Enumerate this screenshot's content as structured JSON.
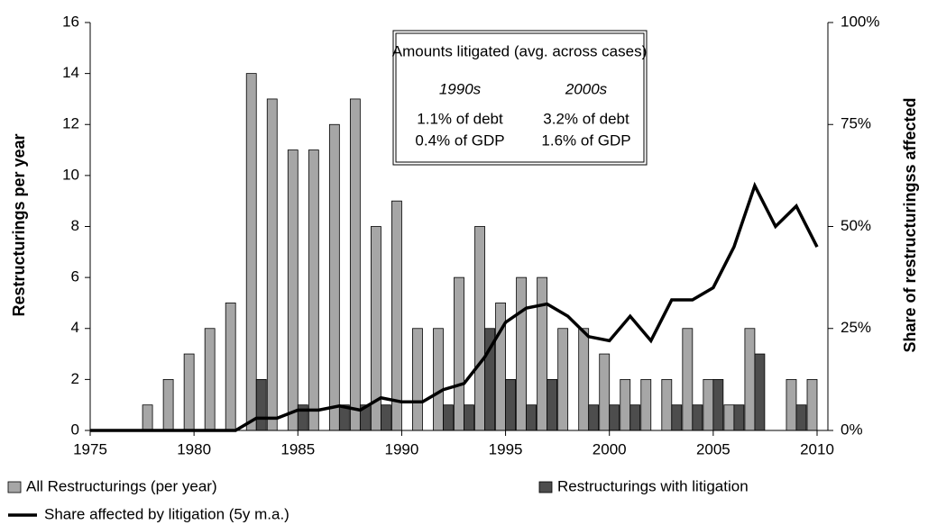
{
  "chart_data": {
    "type": "bar",
    "ylabel": "Restructurings per year",
    "y2label": "Share of restructuringss affected",
    "x": [
      1975,
      1976,
      1977,
      1978,
      1979,
      1980,
      1981,
      1982,
      1983,
      1984,
      1985,
      1986,
      1987,
      1988,
      1989,
      1990,
      1991,
      1992,
      1993,
      1994,
      1995,
      1996,
      1997,
      1998,
      1999,
      2000,
      2001,
      2002,
      2003,
      2004,
      2005,
      2006,
      2007,
      2008,
      2009,
      2010
    ],
    "xlim": [
      1975,
      2010
    ],
    "xticks": [
      1975,
      1980,
      1985,
      1990,
      1995,
      2000,
      2005,
      2010
    ],
    "ylim": [
      0,
      16
    ],
    "yticks": [
      0,
      2,
      4,
      6,
      8,
      10,
      12,
      14,
      16
    ],
    "y2lim": [
      0,
      100
    ],
    "y2ticks": [
      {
        "value": 0,
        "label": "0%"
      },
      {
        "value": 25,
        "label": "25%"
      },
      {
        "value": 50,
        "label": "50%"
      },
      {
        "value": 75,
        "label": "75%"
      },
      {
        "value": 100,
        "label": "100%"
      }
    ],
    "series": [
      {
        "name": "All Restructurings (per year)",
        "type": "bar",
        "color": "#a6a6a6",
        "values": [
          0,
          0,
          0,
          1,
          2,
          3,
          4,
          5,
          14,
          13,
          11,
          11,
          12,
          13,
          8,
          9,
          4,
          4,
          6,
          8,
          5,
          6,
          6,
          4,
          4,
          3,
          2,
          2,
          2,
          4,
          2,
          1,
          4,
          0,
          2,
          2
        ]
      },
      {
        "name": "Restructurings with litigation",
        "type": "bar",
        "color": "#4d4d4d",
        "values": [
          0,
          0,
          0,
          0,
          0,
          0,
          0,
          0,
          2,
          0,
          1,
          0,
          1,
          1,
          1,
          0,
          0,
          1,
          1,
          4,
          2,
          1,
          2,
          0,
          1,
          1,
          1,
          0,
          1,
          1,
          2,
          1,
          3,
          0,
          1,
          0
        ]
      },
      {
        "name": "Share affected by litigation (5y m.a.)",
        "type": "line",
        "axis": "y2",
        "color": "#000000",
        "values": [
          0,
          0,
          0,
          0,
          0,
          0,
          0,
          0,
          3,
          3,
          5,
          5,
          6,
          5,
          8,
          7,
          7,
          10,
          11.5,
          18,
          26.5,
          30,
          31,
          28,
          23,
          22,
          28,
          22,
          32,
          32,
          35,
          45,
          60,
          50,
          55,
          45
        ]
      }
    ],
    "box": {
      "title": "Amounts litigated (avg. across cases)",
      "headers": [
        "1990s",
        "2000s"
      ],
      "rows": [
        [
          "1.1% of debt",
          "3.2% of debt"
        ],
        [
          "0.4% of GDP",
          "1.6% of GDP"
        ]
      ]
    }
  }
}
